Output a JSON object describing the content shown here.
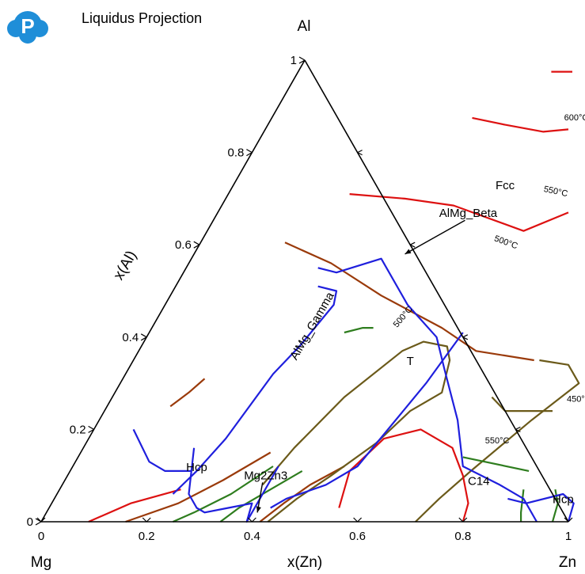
{
  "title": "Liquidus Projection",
  "chart_data": {
    "type": "ternary",
    "vertices": {
      "top": "Al",
      "left": "Mg",
      "right": "Zn"
    },
    "axis_labels": {
      "left": "x(Al)",
      "bottom": "x(Zn)"
    },
    "ticks": {
      "bottom": [
        "0",
        "0.2",
        "0.4",
        "0.6",
        "0.8",
        "1"
      ],
      "left": [
        "0",
        "0.2",
        "0.4",
        "0.6",
        "0.8",
        "1"
      ],
      "bottom_values": [
        0,
        0.2,
        0.4,
        0.6,
        0.8,
        1
      ],
      "left_values": [
        0,
        0.2,
        0.4,
        0.6,
        0.8,
        1
      ]
    },
    "regions": [
      {
        "label": "Fcc",
        "x": 0.52,
        "y": 0.72
      },
      {
        "label": "T",
        "x": 0.53,
        "y": 0.34
      },
      {
        "label": "C14",
        "x": 0.79,
        "y": 0.08
      },
      {
        "label": "Hcp",
        "x": 0.24,
        "y": 0.11
      },
      {
        "label": "Hcp",
        "x": 0.97,
        "y": 0.04
      }
    ],
    "annotations": [
      {
        "label": "AlMg_Beta",
        "x": 0.48,
        "y": 0.66,
        "arrow_to": [
          0.4,
          0.58
        ]
      },
      {
        "label": "Mg2Zn3",
        "x": 0.38,
        "y": 0.092,
        "arrow_to": [
          0.4,
          0.02
        ]
      },
      {
        "label": "AlMg_Gamma",
        "x": 0.31,
        "y": 0.42,
        "rotate": -60
      }
    ],
    "isotherms": [
      {
        "label": "600°C",
        "x": 0.58,
        "y": 0.87,
        "rotate": 0
      },
      {
        "label": "550°C",
        "x": 0.62,
        "y": 0.71,
        "rotate": 12
      },
      {
        "label": "500°C",
        "x": 0.58,
        "y": 0.6,
        "rotate": 20
      },
      {
        "label": "500°C",
        "x": 0.47,
        "y": 0.44,
        "rotate": -50
      },
      {
        "label": "450°C",
        "x": 0.89,
        "y": 0.26,
        "rotate": 0
      },
      {
        "label": "550°C",
        "x": 0.78,
        "y": 0.17,
        "rotate": 0
      }
    ],
    "series": [
      {
        "color": "#dd1111",
        "points": [
          [
            0.48,
            0.975
          ],
          [
            0.52,
            0.975
          ]
        ]
      },
      {
        "color": "#dd1111",
        "points": [
          [
            0.38,
            0.875
          ],
          [
            0.45,
            0.86
          ],
          [
            0.53,
            0.845
          ],
          [
            0.575,
            0.85
          ]
        ]
      },
      {
        "color": "#dd1111",
        "points": [
          [
            0.23,
            0.71
          ],
          [
            0.34,
            0.7
          ],
          [
            0.44,
            0.685
          ],
          [
            0.6,
            0.63
          ],
          [
            0.665,
            0.67
          ]
        ]
      },
      {
        "color": "#9a3a0a",
        "points": [
          [
            0.16,
            0.605
          ],
          [
            0.27,
            0.56
          ],
          [
            0.4,
            0.49
          ],
          [
            0.55,
            0.42
          ],
          [
            0.64,
            0.37
          ],
          [
            0.76,
            0.35
          ]
        ]
      },
      {
        "color": "#9a3a0a",
        "points": [
          [
            0.155,
            0.31
          ],
          [
            0.14,
            0.28
          ],
          [
            0.12,
            0.25
          ]
        ]
      },
      {
        "color": "#dd1111",
        "points": [
          [
            0.23,
            0.07
          ],
          [
            0.15,
            0.04
          ],
          [
            0.09,
            0
          ]
        ]
      },
      {
        "color": "#9a3a0a",
        "points": [
          [
            0.36,
            0.15
          ],
          [
            0.3,
            0.09
          ],
          [
            0.24,
            0.04
          ],
          [
            0.16,
            0
          ]
        ]
      },
      {
        "color": "#2e7d1e",
        "points": [
          [
            0.38,
            0.12
          ],
          [
            0.33,
            0.06
          ],
          [
            0.28,
            0.02
          ],
          [
            0.25,
            0
          ]
        ]
      },
      {
        "color": "#2e7d1e",
        "points": [
          [
            0.44,
            0.11
          ],
          [
            0.4,
            0.07
          ],
          [
            0.36,
            0.03
          ],
          [
            0.34,
            0
          ]
        ]
      },
      {
        "color": "#9a3a0a",
        "points": [
          [
            0.515,
            0.12
          ],
          [
            0.47,
            0.08
          ],
          [
            0.44,
            0.04
          ],
          [
            0.415,
            0
          ]
        ]
      },
      {
        "color": "#2e7d1e",
        "points": [
          [
            0.37,
            0.41
          ],
          [
            0.4,
            0.42
          ],
          [
            0.42,
            0.42
          ]
        ]
      },
      {
        "color": "#6b5a1a",
        "points": [
          [
            0.77,
            0.35
          ],
          [
            0.83,
            0.34
          ],
          [
            0.87,
            0.3
          ],
          [
            0.82,
            0.22
          ],
          [
            0.76,
            0.11
          ],
          [
            0.73,
            0.05
          ],
          [
            0.71,
            0
          ]
        ]
      },
      {
        "color": "#6b5a1a",
        "points": [
          [
            0.72,
            0.27
          ],
          [
            0.76,
            0.24
          ],
          [
            0.85,
            0.24
          ]
        ]
      },
      {
        "color": "#dd1111",
        "points": [
          [
            0.55,
            0.03
          ],
          [
            0.53,
            0.11
          ],
          [
            0.56,
            0.18
          ],
          [
            0.62,
            0.2
          ],
          [
            0.7,
            0.16
          ],
          [
            0.75,
            0.1
          ],
          [
            0.79,
            0.04
          ],
          [
            0.8,
            0
          ]
        ]
      },
      {
        "color": "#6b5a1a",
        "points": [
          [
            0.38,
            0.08
          ],
          [
            0.4,
            0.16
          ],
          [
            0.44,
            0.27
          ],
          [
            0.5,
            0.37
          ],
          [
            0.53,
            0.39
          ],
          [
            0.58,
            0.38
          ],
          [
            0.6,
            0.35
          ],
          [
            0.62,
            0.28
          ],
          [
            0.58,
            0.24
          ],
          [
            0.55,
            0.17
          ],
          [
            0.5,
            0.1
          ],
          [
            0.46,
            0.05
          ],
          [
            0.43,
            0
          ]
        ]
      },
      {
        "color": "#2e7d1e",
        "points": [
          [
            0.73,
            0.14
          ],
          [
            0.87,
            0.11
          ]
        ]
      },
      {
        "color": "#2e7d1e",
        "points": [
          [
            0.88,
            0.07
          ],
          [
            0.9,
            0.02
          ],
          [
            0.91,
            0
          ]
        ]
      },
      {
        "color": "#2e7d1e",
        "points": [
          [
            0.94,
            0.07
          ],
          [
            0.96,
            0.04
          ],
          [
            0.97,
            0
          ]
        ]
      },
      {
        "color": "#1f1fdd",
        "points": [
          [
            0.25,
            0.55
          ],
          [
            0.29,
            0.54
          ],
          [
            0.36,
            0.57
          ],
          [
            0.46,
            0.47
          ],
          [
            0.55,
            0.4
          ],
          [
            0.6,
            0.33
          ],
          [
            0.68,
            0.22
          ],
          [
            0.74,
            0.12
          ],
          [
            0.83,
            0.08
          ],
          [
            0.89,
            0.05
          ],
          [
            0.94,
            0
          ]
        ]
      },
      {
        "color": "#1f1fdd",
        "points": [
          [
            0.27,
            0.51
          ],
          [
            0.31,
            0.5
          ],
          [
            0.32,
            0.47
          ],
          [
            0.3,
            0.38
          ],
          [
            0.28,
            0.32
          ],
          [
            0.26,
            0.18
          ],
          [
            0.24,
            0.11
          ],
          [
            0.22,
            0.06
          ]
        ]
      },
      {
        "color": "#1f1fdd",
        "points": [
          [
            0.21,
            0.16
          ],
          [
            0.23,
            0.11
          ],
          [
            0.25,
            0.06
          ],
          [
            0.28,
            0.03
          ],
          [
            0.3,
            0.02
          ],
          [
            0.34,
            0.03
          ],
          [
            0.38,
            0.04
          ],
          [
            0.39,
            0
          ],
          [
            0.39,
            0.12
          ]
        ]
      },
      {
        "color": "#1f1fdd",
        "points": [
          [
            0.075,
            0.2
          ],
          [
            0.14,
            0.13
          ],
          [
            0.18,
            0.11
          ],
          [
            0.23,
            0.11
          ]
        ]
      },
      {
        "color": "#1f1fdd",
        "points": [
          [
            0.595,
            0.41
          ],
          [
            0.58,
            0.3
          ],
          [
            0.54,
            0.12
          ],
          [
            0.5,
            0.08
          ],
          [
            0.44,
            0.05
          ],
          [
            0.43,
            0.04
          ],
          [
            0.42,
            0.03
          ]
        ]
      },
      {
        "color": "#1f1fdd",
        "points": [
          [
            0.86,
            0.05
          ],
          [
            0.9,
            0.04
          ],
          [
            0.96,
            0.06
          ],
          [
            0.99,
            0.04
          ],
          [
            1,
            0
          ]
        ]
      }
    ]
  }
}
